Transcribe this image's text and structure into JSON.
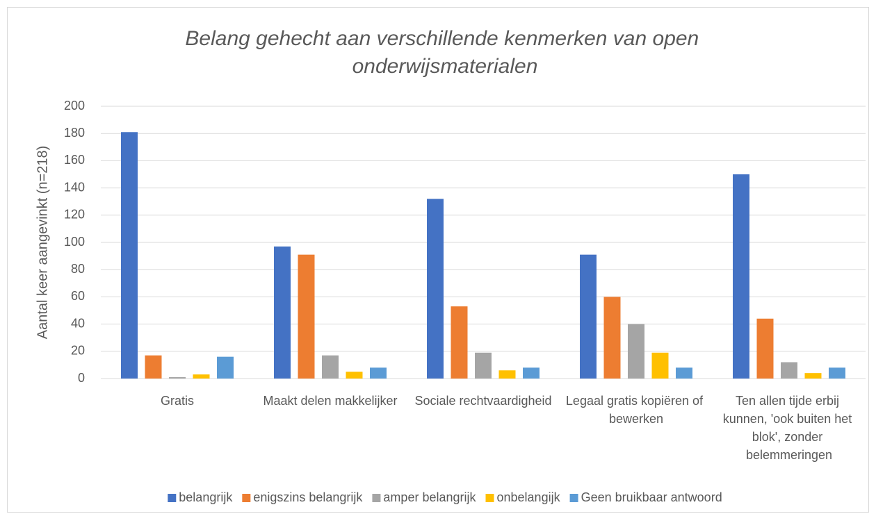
{
  "chart_data": {
    "type": "bar",
    "title": "Belang gehecht aan verschillende kenmerken van open onderwijsmaterialen",
    "y_label": "Aantal keer aangevinkt (n=218)",
    "categories": [
      "Gratis",
      "Maakt delen makkelijker",
      "Sociale rechtvaardigheid",
      "Legaal gratis kopiëren of bewerken",
      "Ten allen tijde erbij kunnen, 'ook buiten het blok', zonder belemmeringen"
    ],
    "series": [
      {
        "name": "belangrijk",
        "color": "#4472c4",
        "values": [
          181,
          97,
          132,
          91,
          150
        ]
      },
      {
        "name": "enigszins belangrijk",
        "color": "#ed7d31",
        "values": [
          17,
          91,
          53,
          60,
          44
        ]
      },
      {
        "name": "amper belangrijk",
        "color": "#a5a5a5",
        "values": [
          1,
          17,
          19,
          40,
          12
        ]
      },
      {
        "name": "onbelangijk",
        "color": "#ffc000",
        "values": [
          3,
          5,
          6,
          19,
          4
        ]
      },
      {
        "name": "Geen bruikbaar antwoord",
        "color": "#5b9bd5",
        "values": [
          16,
          8,
          8,
          8,
          8
        ]
      }
    ],
    "ylim": [
      0,
      200
    ],
    "yticks": [
      0,
      20,
      40,
      60,
      80,
      100,
      120,
      140,
      160,
      180,
      200
    ],
    "grid": true,
    "legend": "bottom"
  }
}
